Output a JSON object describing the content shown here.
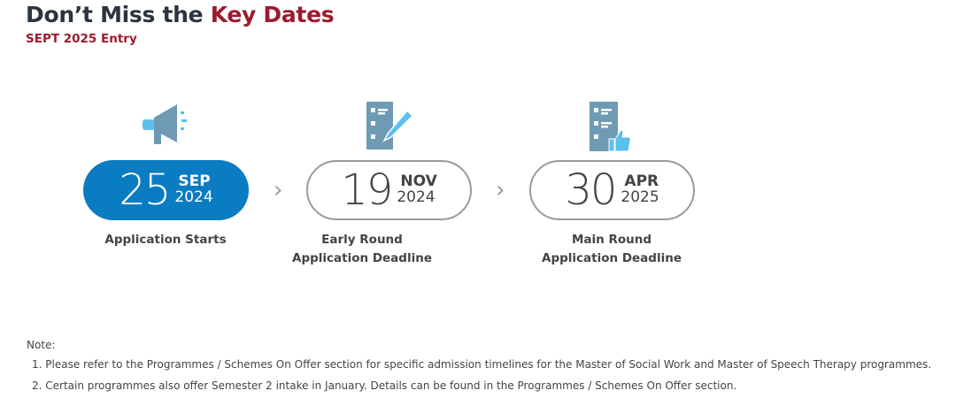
{
  "header": {
    "title_part1": "Don’t Miss the ",
    "title_accent": "Key Dates",
    "subtitle": "SEPT 2025 Entry"
  },
  "timeline": [
    {
      "day": "25",
      "month": "SEP",
      "year": "2024",
      "label": "Application Starts",
      "icon": "megaphone-icon",
      "active": true
    },
    {
      "day": "19",
      "month": "NOV",
      "year": "2024",
      "label": "Early Round Application Deadline",
      "icon": "checklist-pencil-icon",
      "active": false
    },
    {
      "day": "30",
      "month": "APR",
      "year": "2025",
      "label": "Main Round Application Deadline",
      "icon": "checklist-thumbs-up-icon",
      "active": false
    }
  ],
  "separator": "›",
  "notes": {
    "heading": "Note:",
    "items": [
      "1. Please refer to the Programmes / Schemes On Offer section for specific admission timelines for the Master of Social Work and Master of Speech Therapy programmes.",
      "2. Certain programmes also offer Semester 2 intake in January. Details can be found in the Programmes / Schemes On Offer section."
    ]
  },
  "colors": {
    "accent": "#9b1c2e",
    "active_box": "#0a7cc1",
    "icon_body": "#6e9ab4",
    "icon_highlight": "#5bc0f0"
  }
}
